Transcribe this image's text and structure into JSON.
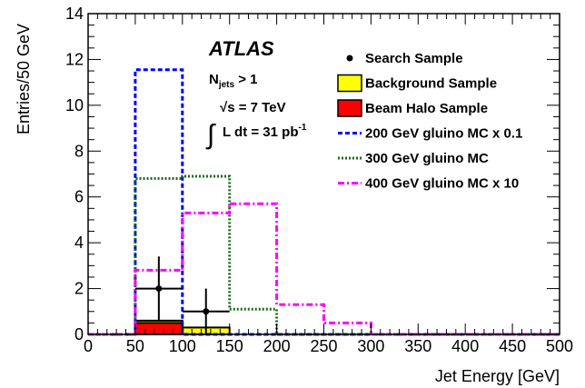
{
  "chart_data": {
    "type": "bar",
    "xlabel": "Jet Energy [GeV]",
    "ylabel": "Entries/50 GeV",
    "xlim": [
      0,
      500
    ],
    "ylim": [
      0,
      14
    ],
    "x_ticks": [
      0,
      50,
      100,
      150,
      200,
      250,
      300,
      350,
      400,
      450,
      500
    ],
    "y_ticks": [
      0,
      2,
      4,
      6,
      8,
      10,
      12,
      14
    ],
    "grid": false,
    "legend_position": "top-right",
    "bin_edges": [
      0,
      50,
      100,
      150,
      200,
      250,
      300,
      350,
      400,
      450,
      500
    ],
    "series": [
      {
        "name": "Search Sample",
        "kind": "points",
        "x": [
          75,
          125
        ],
        "y": [
          2,
          1
        ],
        "yerr": [
          1.4,
          1.0
        ],
        "xerr": 25,
        "color": "#000000"
      },
      {
        "name": "Background Sample",
        "kind": "filled-histogram",
        "values": [
          0,
          0.6,
          0.3,
          0,
          0,
          0,
          0,
          0,
          0,
          0
        ],
        "color": "#ffff00"
      },
      {
        "name": "Beam Halo Sample",
        "kind": "filled-histogram",
        "values": [
          0,
          0.5,
          0,
          0,
          0,
          0,
          0,
          0,
          0,
          0
        ],
        "color": "#ff0000"
      },
      {
        "name": "200 GeV gluino MC x 0.1",
        "kind": "line-histogram",
        "values": [
          0,
          11.55,
          0,
          0,
          0,
          0,
          0,
          0,
          0,
          0
        ],
        "color": "#0000ff",
        "dash": "dashed"
      },
      {
        "name": "300 GeV gluino MC",
        "kind": "line-histogram",
        "values": [
          0,
          6.8,
          6.9,
          1.1,
          0,
          0,
          0,
          0,
          0,
          0
        ],
        "color": "#1a6b1a",
        "dash": "dotted"
      },
      {
        "name": "400 GeV gluino MC x 10",
        "kind": "line-histogram",
        "values": [
          0,
          2.8,
          5.3,
          5.7,
          1.3,
          0.5,
          0,
          0,
          0,
          0
        ],
        "color": "#ff00ff",
        "dash": "dash-dot"
      }
    ],
    "annotations": {
      "experiment": "ATLAS",
      "njets_main": "N",
      "njets_sub": "jets",
      "njets_rest": " > 1",
      "sqrt_s": "√s = 7 TeV",
      "integral_sign": "∫",
      "lumi_main": "L dt = 31 pb",
      "lumi_sup": "-1"
    }
  }
}
